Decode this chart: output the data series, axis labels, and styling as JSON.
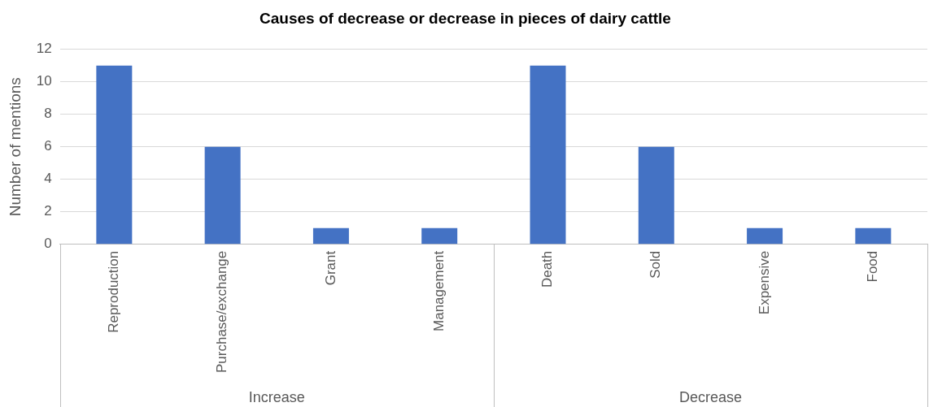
{
  "chart_data": {
    "type": "bar",
    "title": "Causes of decrease or decrease in pieces of dairy cattle",
    "ylabel": "Number of mentions",
    "categories": [
      "Reproduction",
      "Purchase/exchange",
      "Grant",
      "Management",
      "Death",
      "Sold",
      "Expensive",
      "Food"
    ],
    "values": [
      11,
      6,
      1,
      1,
      11,
      6,
      1,
      1
    ],
    "color": "#4472c4",
    "ylim": [
      0,
      12
    ],
    "yticks": [
      0,
      2,
      4,
      6,
      8,
      10,
      12
    ],
    "grid": "y",
    "legend": false,
    "annotations": [
      "Increase",
      "Decrease"
    ]
  }
}
